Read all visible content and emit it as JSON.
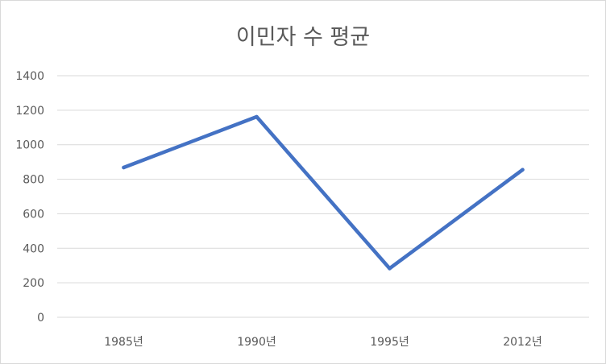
{
  "chart_data": {
    "type": "line",
    "title": "이민자 수 평균",
    "xlabel": "",
    "ylabel": "",
    "categories": [
      "1985년",
      "1990년",
      "1995년",
      "2012년"
    ],
    "series": [
      {
        "values": [
          868,
          1162,
          283,
          855
        ],
        "color": "#4472c4"
      }
    ],
    "ylim": [
      0,
      1400
    ],
    "yticks": [
      0,
      200,
      400,
      600,
      800,
      1000,
      1200,
      1400
    ],
    "grid": true,
    "legend": "none"
  },
  "colors": {
    "series": "#4472c4",
    "gridline": "#d9d9d9",
    "text": "#595959"
  }
}
